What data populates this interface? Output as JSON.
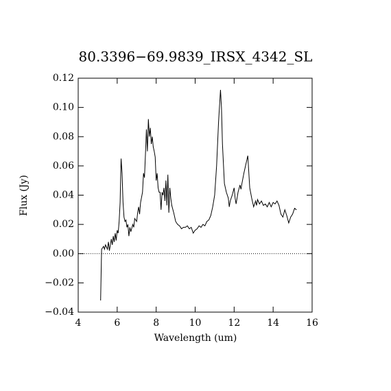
{
  "chart_data": {
    "type": "line",
    "title": "80.3396−69.9839_IRSX_4342_SL",
    "x_label": "Wavelength (um)",
    "y_label": "Flux (Jy)",
    "color": "#000000",
    "reference_line": 0,
    "xlim": [
      4,
      16
    ],
    "xticks": [
      4,
      6,
      8,
      10,
      12,
      14,
      16
    ],
    "ylim": [
      -0.04,
      0.12
    ],
    "yticks": [
      {
        "value": -0.04,
        "label": "−0.04"
      },
      {
        "value": -0.02,
        "label": "−0.02"
      },
      {
        "value": 0,
        "label": "0.00"
      },
      {
        "value": 0.02,
        "label": "0.02"
      },
      {
        "value": 0.04,
        "label": "0.04"
      },
      {
        "value": 0.06,
        "label": "0.06"
      },
      {
        "value": 0.08,
        "label": "0.08"
      },
      {
        "value": 0.1,
        "label": "0.10"
      },
      0.12
    ],
    "x": [
      5.15,
      5.2,
      5.3,
      5.35,
      5.4,
      5.5,
      5.55,
      5.6,
      5.7,
      5.75,
      5.8,
      5.85,
      5.9,
      5.95,
      6.0,
      6.05,
      6.1,
      6.15,
      6.2,
      6.25,
      6.3,
      6.35,
      6.4,
      6.45,
      6.5,
      6.55,
      6.6,
      6.65,
      6.7,
      6.8,
      6.85,
      6.9,
      7.0,
      7.05,
      7.1,
      7.15,
      7.2,
      7.3,
      7.35,
      7.4,
      7.45,
      7.5,
      7.55,
      7.6,
      7.65,
      7.7,
      7.75,
      7.8,
      7.85,
      7.9,
      7.95,
      8.0,
      8.05,
      8.1,
      8.15,
      8.2,
      8.25,
      8.3,
      8.35,
      8.4,
      8.45,
      8.5,
      8.55,
      8.6,
      8.65,
      8.7,
      8.75,
      8.8,
      8.9,
      9.0,
      9.1,
      9.2,
      9.3,
      9.4,
      9.5,
      9.6,
      9.7,
      9.8,
      9.9,
      10.0,
      10.1,
      10.2,
      10.3,
      10.4,
      10.5,
      10.6,
      10.7,
      10.8,
      10.9,
      11.0,
      11.1,
      11.2,
      11.3,
      11.35,
      11.4,
      11.5,
      11.6,
      11.7,
      11.75,
      11.8,
      11.9,
      12.0,
      12.05,
      12.1,
      12.2,
      12.3,
      12.35,
      12.4,
      12.5,
      12.6,
      12.7,
      12.8,
      12.9,
      13.0,
      13.1,
      13.15,
      13.2,
      13.3,
      13.4,
      13.5,
      13.6,
      13.7,
      13.8,
      13.9,
      14.0,
      14.1,
      14.2,
      14.3,
      14.4,
      14.5,
      14.6,
      14.7,
      14.8,
      14.9,
      15.0,
      15.1,
      15.2
    ],
    "values": [
      -0.032,
      0.003,
      0.005,
      0.003,
      0.006,
      0.003,
      0.008,
      0.002,
      0.01,
      0.006,
      0.012,
      0.008,
      0.014,
      0.009,
      0.016,
      0.014,
      0.022,
      0.035,
      0.065,
      0.055,
      0.035,
      0.025,
      0.022,
      0.023,
      0.018,
      0.02,
      0.012,
      0.018,
      0.015,
      0.02,
      0.018,
      0.024,
      0.022,
      0.028,
      0.032,
      0.027,
      0.035,
      0.042,
      0.055,
      0.052,
      0.068,
      0.085,
      0.07,
      0.092,
      0.08,
      0.086,
      0.075,
      0.08,
      0.073,
      0.07,
      0.066,
      0.05,
      0.055,
      0.045,
      0.042,
      0.042,
      0.03,
      0.042,
      0.04,
      0.045,
      0.036,
      0.05,
      0.033,
      0.054,
      0.028,
      0.045,
      0.038,
      0.033,
      0.028,
      0.022,
      0.02,
      0.019,
      0.017,
      0.018,
      0.018,
      0.019,
      0.017,
      0.018,
      0.014,
      0.016,
      0.017,
      0.019,
      0.018,
      0.02,
      0.019,
      0.022,
      0.023,
      0.026,
      0.032,
      0.04,
      0.06,
      0.09,
      0.112,
      0.1,
      0.075,
      0.048,
      0.042,
      0.038,
      0.032,
      0.036,
      0.04,
      0.045,
      0.038,
      0.034,
      0.042,
      0.047,
      0.044,
      0.048,
      0.055,
      0.061,
      0.067,
      0.045,
      0.038,
      0.032,
      0.036,
      0.033,
      0.037,
      0.034,
      0.036,
      0.033,
      0.034,
      0.032,
      0.035,
      0.032,
      0.035,
      0.034,
      0.036,
      0.033,
      0.027,
      0.025,
      0.03,
      0.026,
      0.021,
      0.025,
      0.027,
      0.031,
      0.03
    ]
  }
}
